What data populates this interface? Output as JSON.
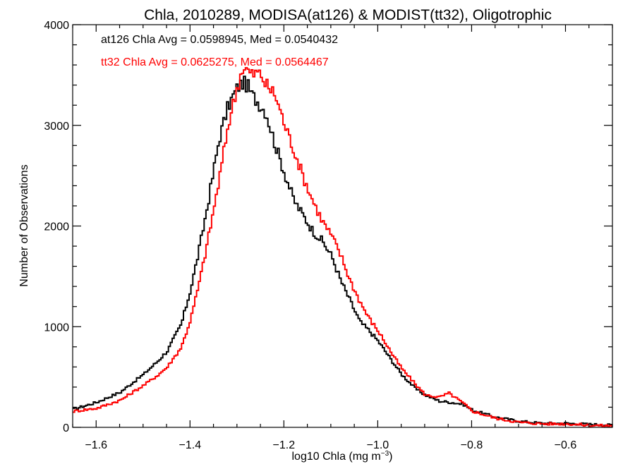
{
  "chart_data": {
    "type": "line",
    "style": "step",
    "title": "Chla, 2010289, MODISA(at126) & MODIST(tt32), Oligotrophic",
    "xlabel_main": "log10 Chla (mg m",
    "xlabel_sup": "−3",
    "xlabel_close": ")",
    "ylabel": "Number of Observations",
    "xlim": [
      -1.65,
      -0.5
    ],
    "ylim": [
      0,
      4000
    ],
    "xticks": [
      -1.6,
      -1.4,
      -1.2,
      -1.0,
      -0.8,
      -0.6
    ],
    "xtick_labels": [
      "−1.6",
      "−1.4",
      "−1.2",
      "−1.0",
      "−0.8",
      "−0.6"
    ],
    "yticks": [
      0,
      1000,
      2000,
      3000,
      4000
    ],
    "ytick_labels": [
      "0",
      "1000",
      "2000",
      "3000",
      "4000"
    ],
    "grid": false,
    "annotations": [
      {
        "text": "at126 Chla Avg = 0.0598945, Med = 0.0540432",
        "color": "#000000"
      },
      {
        "text": "tt32 Chla Avg = 0.0625275, Med = 0.0564467",
        "color": "#ff0000"
      }
    ],
    "series": [
      {
        "key": "at126",
        "color": "#000000",
        "x": [
          -1.65,
          -1.6,
          -1.55,
          -1.5,
          -1.47,
          -1.45,
          -1.42,
          -1.4,
          -1.38,
          -1.36,
          -1.34,
          -1.32,
          -1.3,
          -1.29,
          -1.28,
          -1.27,
          -1.26,
          -1.25,
          -1.24,
          -1.22,
          -1.2,
          -1.18,
          -1.16,
          -1.14,
          -1.12,
          -1.1,
          -1.08,
          -1.06,
          -1.04,
          -1.02,
          -1.0,
          -0.97,
          -0.95,
          -0.92,
          -0.9,
          -0.87,
          -0.85,
          -0.82,
          -0.8,
          -0.75,
          -0.7,
          -0.65,
          -0.6,
          -0.55,
          -0.5
        ],
        "y": [
          180,
          250,
          350,
          530,
          660,
          760,
          1030,
          1380,
          1820,
          2320,
          2860,
          3200,
          3380,
          3420,
          3400,
          3300,
          3250,
          3190,
          3130,
          2800,
          2520,
          2250,
          2100,
          1950,
          1850,
          1700,
          1450,
          1250,
          1050,
          960,
          850,
          650,
          520,
          380,
          320,
          260,
          250,
          230,
          170,
          100,
          60,
          40,
          40,
          30,
          20
        ]
      },
      {
        "key": "tt32",
        "color": "#ff0000",
        "x": [
          -1.65,
          -1.6,
          -1.55,
          -1.5,
          -1.47,
          -1.45,
          -1.42,
          -1.4,
          -1.38,
          -1.36,
          -1.34,
          -1.32,
          -1.3,
          -1.29,
          -1.28,
          -1.27,
          -1.26,
          -1.25,
          -1.24,
          -1.22,
          -1.2,
          -1.18,
          -1.16,
          -1.14,
          -1.12,
          -1.1,
          -1.08,
          -1.06,
          -1.04,
          -1.02,
          -1.0,
          -0.97,
          -0.95,
          -0.92,
          -0.9,
          -0.87,
          -0.85,
          -0.82,
          -0.8,
          -0.75,
          -0.7,
          -0.65,
          -0.6,
          -0.55,
          -0.5
        ],
        "y": [
          160,
          190,
          270,
          420,
          520,
          600,
          800,
          1080,
          1480,
          1950,
          2450,
          3020,
          3400,
          3570,
          3550,
          3500,
          3520,
          3500,
          3400,
          3300,
          3000,
          2750,
          2480,
          2250,
          2050,
          1900,
          1700,
          1450,
          1250,
          1080,
          950,
          720,
          580,
          420,
          320,
          300,
          340,
          240,
          160,
          90,
          50,
          35,
          35,
          20,
          15
        ]
      }
    ]
  }
}
